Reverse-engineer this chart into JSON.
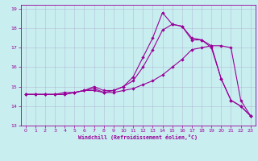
{
  "xlabel": "Windchill (Refroidissement éolien,°C)",
  "bg_color": "#c8eef0",
  "grid_color": "#aaaacc",
  "line_color": "#990099",
  "xlim": [
    -0.5,
    23.5
  ],
  "ylim": [
    13,
    19.2
  ],
  "xticks": [
    0,
    1,
    2,
    3,
    4,
    5,
    6,
    7,
    8,
    9,
    10,
    11,
    12,
    13,
    14,
    15,
    16,
    17,
    18,
    19,
    20,
    21,
    22,
    23
  ],
  "yticks": [
    13,
    14,
    15,
    16,
    17,
    18,
    19
  ],
  "line1_x": [
    0,
    1,
    2,
    3,
    4,
    5,
    6,
    7,
    8,
    9,
    10,
    11,
    12,
    13,
    14,
    15,
    16,
    17,
    18,
    19,
    20,
    21,
    22,
    23
  ],
  "line1_y": [
    14.6,
    14.6,
    14.6,
    14.6,
    14.6,
    14.7,
    14.8,
    14.8,
    14.7,
    14.7,
    14.8,
    14.9,
    15.1,
    15.3,
    15.6,
    16.0,
    16.4,
    16.9,
    17.0,
    17.1,
    17.1,
    17.0,
    14.3,
    13.5
  ],
  "line2_x": [
    0,
    1,
    2,
    3,
    4,
    5,
    6,
    7,
    8,
    9,
    10,
    11,
    12,
    13,
    14,
    15,
    16,
    17,
    18,
    19,
    20,
    21,
    22,
    23
  ],
  "line2_y": [
    14.6,
    14.6,
    14.6,
    14.6,
    14.7,
    14.7,
    14.8,
    15.0,
    14.8,
    14.8,
    15.0,
    15.3,
    16.0,
    16.9,
    17.9,
    18.2,
    18.1,
    17.5,
    17.4,
    17.1,
    15.4,
    14.3,
    14.0,
    13.5
  ],
  "line3_x": [
    0,
    1,
    2,
    3,
    4,
    5,
    6,
    7,
    8,
    9,
    10,
    11,
    12,
    13,
    14,
    15,
    16,
    17,
    18,
    19,
    20,
    21,
    22,
    23
  ],
  "line3_y": [
    14.6,
    14.6,
    14.6,
    14.6,
    14.6,
    14.7,
    14.8,
    14.9,
    14.7,
    14.8,
    15.0,
    15.5,
    16.5,
    17.5,
    18.8,
    18.2,
    18.1,
    17.4,
    17.4,
    17.0,
    15.4,
    14.3,
    14.0,
    13.5
  ]
}
